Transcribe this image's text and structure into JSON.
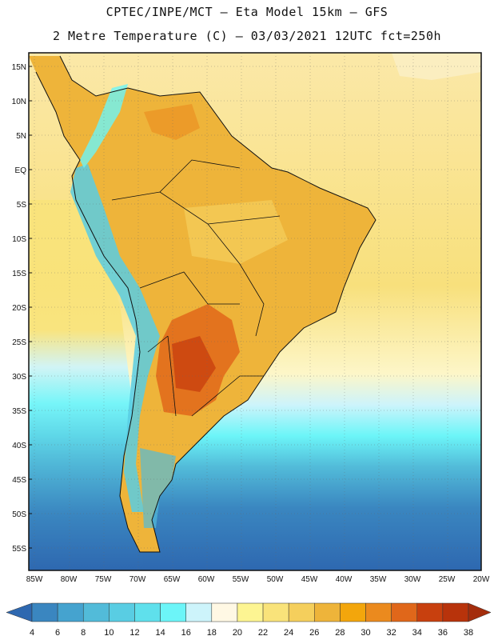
{
  "header": {
    "line1": "CPTEC/INPE/MCT –  Eta Model 15km – GFS",
    "line2": "2 Metre Temperature (C) – 03/03/2021 12UTC fct=250h"
  },
  "axes": {
    "lat_labels": [
      "15N",
      "10N",
      "5N",
      "EQ",
      "5S",
      "10S",
      "15S",
      "20S",
      "25S",
      "30S",
      "35S",
      "40S",
      "45S",
      "50S",
      "55S"
    ],
    "lon_labels": [
      "85W",
      "80W",
      "75W",
      "70W",
      "65W",
      "60W",
      "55W",
      "50W",
      "45W",
      "40W",
      "35W",
      "30W",
      "25W",
      "20W"
    ]
  },
  "colorbar": {
    "labels": [
      "4",
      "6",
      "8",
      "10",
      "12",
      "14",
      "16",
      "18",
      "20",
      "22",
      "24",
      "26",
      "28",
      "30",
      "32",
      "34",
      "36",
      "38"
    ],
    "colors": [
      "#2e68b0",
      "#3a86c0",
      "#45a3cf",
      "#52bbd9",
      "#59cde3",
      "#5fe0ec",
      "#6cf5f8",
      "#cdf4fb",
      "#fff8e4",
      "#fdf592",
      "#f9e37a",
      "#f5cf5c",
      "#eeb43a",
      "#f3a60c",
      "#eb8a1e",
      "#e0671a",
      "#c8400e",
      "#b8330b",
      "#a42d0c"
    ]
  },
  "map_colors": {
    "ocean_north": "#fbe6a0",
    "ocean_mid": "#f9e37a",
    "land": "#eeb43a",
    "border": "#111111"
  }
}
